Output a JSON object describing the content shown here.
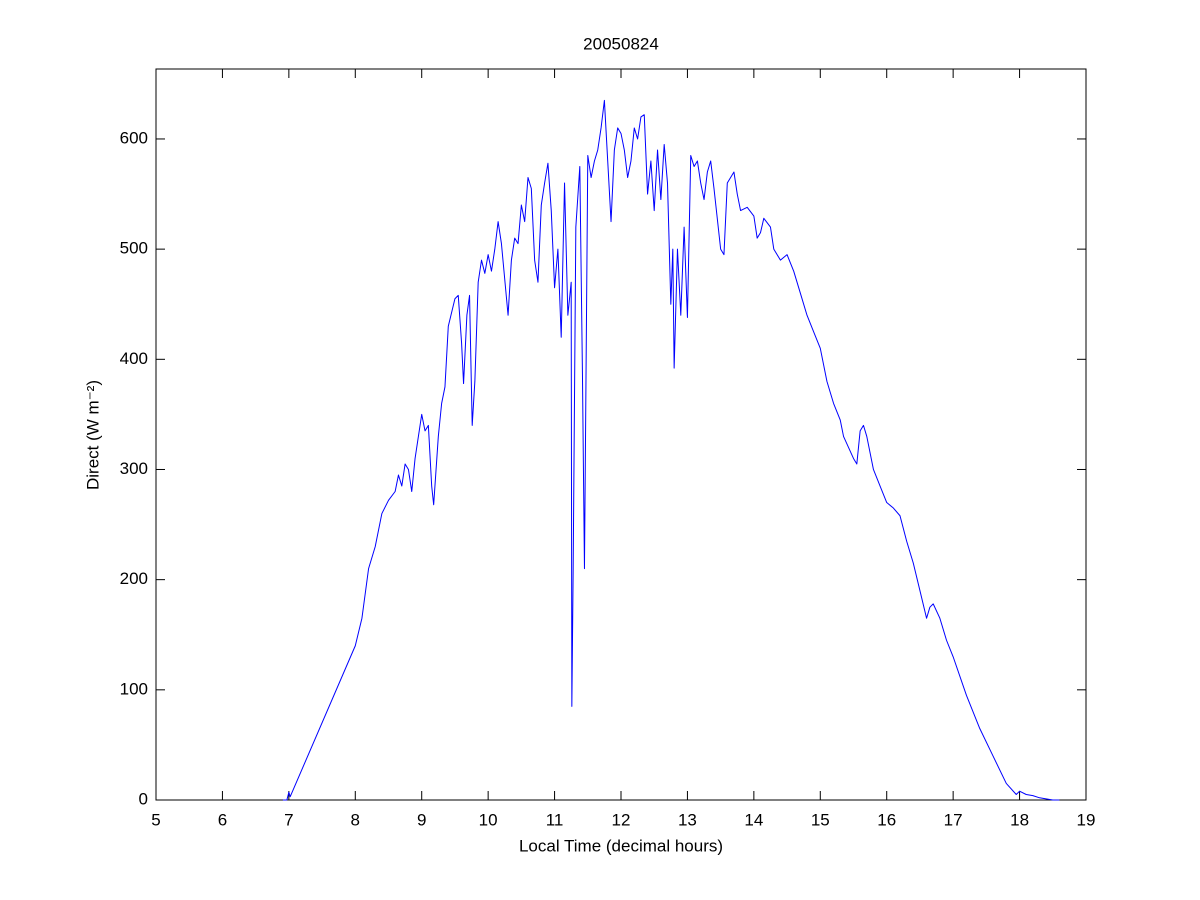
{
  "chart_data": {
    "type": "line",
    "title": "20050824",
    "x_label": "Local Time (decimal hours)",
    "y_label": "Direct (W m⁻²)",
    "xlim": [
      5,
      19
    ],
    "ylim": [
      0,
      663.5
    ],
    "xticks": [
      5,
      6,
      7,
      8,
      9,
      10,
      11,
      12,
      13,
      14,
      15,
      16,
      17,
      18,
      19
    ],
    "yticks": [
      0,
      100,
      200,
      300,
      400,
      500,
      600
    ],
    "grid": false,
    "series": [
      {
        "color": "#0000ff",
        "x": [
          6.91,
          6.97,
          7.0,
          7.02,
          8.0,
          8.1,
          8.2,
          8.3,
          8.4,
          8.5,
          8.6,
          8.65,
          8.7,
          8.75,
          8.8,
          8.85,
          8.9,
          9.0,
          9.05,
          9.1,
          9.15,
          9.18,
          9.25,
          9.3,
          9.35,
          9.4,
          9.5,
          9.55,
          9.6,
          9.63,
          9.68,
          9.72,
          9.76,
          9.8,
          9.85,
          9.9,
          9.95,
          10.0,
          10.05,
          10.1,
          10.15,
          10.2,
          10.3,
          10.35,
          10.4,
          10.45,
          10.5,
          10.55,
          10.6,
          10.65,
          10.7,
          10.75,
          10.8,
          10.85,
          10.9,
          10.95,
          11.0,
          11.05,
          11.1,
          11.15,
          11.2,
          11.25,
          11.26,
          11.28,
          11.32,
          11.38,
          11.42,
          11.45,
          11.5,
          11.55,
          11.6,
          11.65,
          11.7,
          11.75,
          11.8,
          11.85,
          11.9,
          11.95,
          12.0,
          12.05,
          12.1,
          12.15,
          12.2,
          12.25,
          12.3,
          12.35,
          12.4,
          12.45,
          12.5,
          12.55,
          12.6,
          12.65,
          12.7,
          12.75,
          12.78,
          12.8,
          12.85,
          12.9,
          12.95,
          13.0,
          13.05,
          13.1,
          13.15,
          13.2,
          13.25,
          13.3,
          13.35,
          13.4,
          13.5,
          13.55,
          13.6,
          13.7,
          13.75,
          13.8,
          13.9,
          14.0,
          14.05,
          14.1,
          14.15,
          14.25,
          14.3,
          14.4,
          14.5,
          14.6,
          14.7,
          14.8,
          14.9,
          15.0,
          15.1,
          15.2,
          15.3,
          15.35,
          15.5,
          15.55,
          15.6,
          15.65,
          15.7,
          15.8,
          15.9,
          16.0,
          16.1,
          16.2,
          16.3,
          16.4,
          16.5,
          16.6,
          16.65,
          16.7,
          16.8,
          16.9,
          17.0,
          17.2,
          17.4,
          17.6,
          17.8,
          17.95,
          18.0,
          18.1,
          18.2,
          18.3,
          18.5,
          18.6
        ],
        "values": [
          0,
          0,
          7,
          3,
          140,
          165,
          210,
          230,
          260,
          272,
          280,
          295,
          285,
          305,
          300,
          280,
          310,
          350,
          335,
          340,
          285,
          268,
          330,
          360,
          375,
          430,
          455,
          458,
          415,
          378,
          440,
          458,
          340,
          380,
          470,
          490,
          478,
          495,
          480,
          500,
          525,
          505,
          440,
          490,
          510,
          505,
          540,
          525,
          565,
          555,
          490,
          470,
          540,
          560,
          578,
          535,
          465,
          500,
          420,
          560,
          440,
          470,
          85,
          210,
          520,
          575,
          385,
          210,
          585,
          565,
          580,
          590,
          610,
          635,
          580,
          525,
          590,
          610,
          605,
          590,
          565,
          580,
          610,
          600,
          620,
          622,
          550,
          580,
          535,
          590,
          545,
          595,
          560,
          450,
          500,
          392,
          500,
          440,
          520,
          438,
          585,
          575,
          580,
          560,
          545,
          570,
          580,
          555,
          500,
          495,
          560,
          570,
          550,
          535,
          538,
          530,
          510,
          515,
          528,
          520,
          500,
          490,
          495,
          480,
          460,
          440,
          425,
          410,
          380,
          360,
          345,
          330,
          310,
          305,
          335,
          340,
          330,
          300,
          285,
          270,
          265,
          258,
          235,
          215,
          190,
          165,
          175,
          178,
          165,
          145,
          130,
          95,
          65,
          40,
          15,
          5,
          8,
          5,
          4,
          2,
          0,
          0
        ]
      }
    ]
  }
}
